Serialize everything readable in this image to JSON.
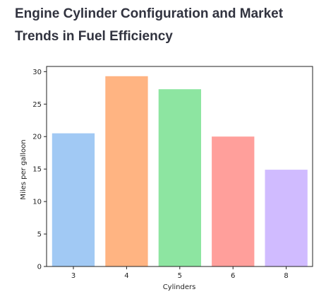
{
  "page": {
    "title": "Engine Cylinder Configuration and Market Trends in Fuel Efficiency"
  },
  "chart_data": {
    "type": "bar",
    "title": "",
    "xlabel": "Cylinders",
    "ylabel": "Miles per galloon",
    "categories": [
      "3",
      "4",
      "5",
      "6",
      "8"
    ],
    "values": [
      20.5,
      29.3,
      27.3,
      20.0,
      14.9
    ],
    "colors": [
      "#a1c9f4",
      "#ffb482",
      "#8de5a1",
      "#ff9f9b",
      "#d0bbff"
    ],
    "ylim": [
      0,
      30.8
    ],
    "yticks": [
      0,
      5,
      10,
      15,
      20,
      25,
      30
    ],
    "grid": false,
    "legend": "none"
  }
}
